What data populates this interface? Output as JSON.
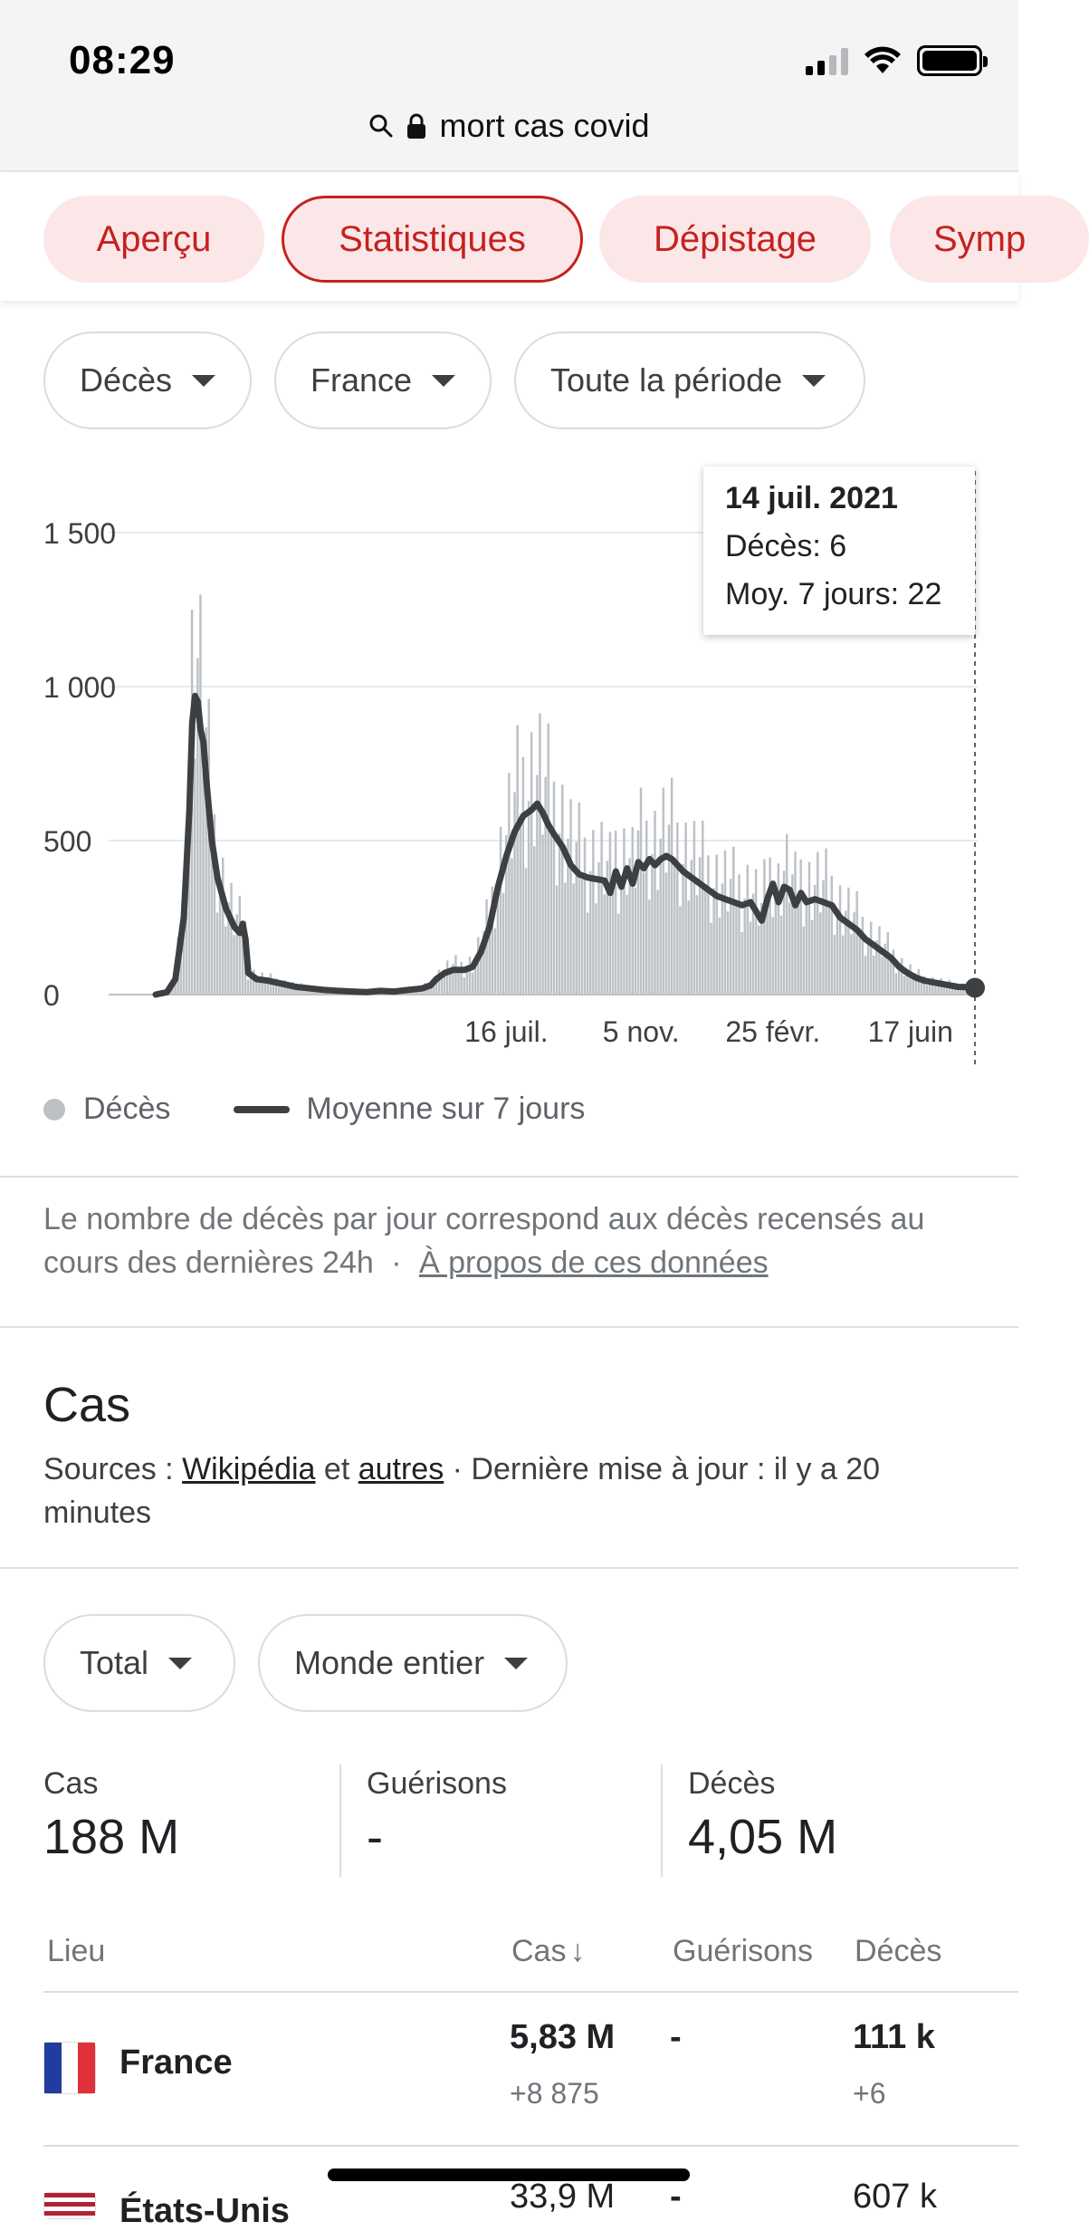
{
  "status_bar": {
    "time": "08:29"
  },
  "browser": {
    "url_text": "mort cas covid"
  },
  "tabs": [
    {
      "label": "Aperçu",
      "active": false
    },
    {
      "label": "Statistiques",
      "active": true
    },
    {
      "label": "Dépistage",
      "active": false
    },
    {
      "label": "Symp",
      "active": false
    }
  ],
  "filters": {
    "metric": "Décès",
    "region": "France",
    "period": "Toute la période"
  },
  "tooltip": {
    "date": "14 juil. 2021",
    "deaths": "Décès: 6",
    "avg": "Moy. 7 jours: 22"
  },
  "legend": {
    "bars": "Décès",
    "line": "Moyenne sur 7 jours"
  },
  "chart_data": {
    "type": "bar",
    "y_ticks": [
      "1 500",
      "1 000",
      "500",
      "0"
    ],
    "x_ticks": [
      "16 juil.",
      "5 nov.",
      "25 févr.",
      "17 juin"
    ],
    "ylim": [
      0,
      1500
    ],
    "grid": true,
    "series": [
      {
        "name": "Décès",
        "type": "bar",
        "color": "#bdc1c6"
      },
      {
        "name": "Moyenne sur 7 jours",
        "type": "line",
        "color": "#3c4043"
      }
    ],
    "avg_points": [
      [
        0,
        0
      ],
      [
        4,
        8
      ],
      [
        7,
        50
      ],
      [
        10,
        250
      ],
      [
        12,
        600
      ],
      [
        13,
        880
      ],
      [
        14,
        970
      ],
      [
        15,
        950
      ],
      [
        16,
        860
      ],
      [
        17,
        820
      ],
      [
        18,
        700
      ],
      [
        20,
        500
      ],
      [
        22,
        380
      ],
      [
        25,
        280
      ],
      [
        28,
        220
      ],
      [
        30,
        200
      ],
      [
        31,
        230
      ],
      [
        32,
        180
      ],
      [
        33,
        70
      ],
      [
        36,
        50
      ],
      [
        40,
        45
      ],
      [
        45,
        35
      ],
      [
        50,
        25
      ],
      [
        55,
        20
      ],
      [
        60,
        15
      ],
      [
        65,
        12
      ],
      [
        70,
        10
      ],
      [
        75,
        8
      ],
      [
        80,
        12
      ],
      [
        85,
        10
      ],
      [
        90,
        15
      ],
      [
        95,
        20
      ],
      [
        98,
        30
      ],
      [
        100,
        50
      ],
      [
        103,
        70
      ],
      [
        106,
        80
      ],
      [
        110,
        80
      ],
      [
        113,
        90
      ],
      [
        116,
        140
      ],
      [
        119,
        220
      ],
      [
        122,
        350
      ],
      [
        125,
        450
      ],
      [
        128,
        530
      ],
      [
        131,
        580
      ],
      [
        134,
        600
      ],
      [
        136,
        620
      ],
      [
        138,
        590
      ],
      [
        140,
        550
      ],
      [
        142,
        520
      ],
      [
        145,
        480
      ],
      [
        148,
        420
      ],
      [
        151,
        390
      ],
      [
        154,
        380
      ],
      [
        157,
        375
      ],
      [
        160,
        370
      ],
      [
        162,
        330
      ],
      [
        164,
        400
      ],
      [
        166,
        350
      ],
      [
        168,
        410
      ],
      [
        170,
        360
      ],
      [
        172,
        430
      ],
      [
        174,
        410
      ],
      [
        176,
        440
      ],
      [
        178,
        420
      ],
      [
        180,
        440
      ],
      [
        182,
        450
      ],
      [
        184,
        440
      ],
      [
        186,
        420
      ],
      [
        188,
        400
      ],
      [
        191,
        380
      ],
      [
        194,
        360
      ],
      [
        197,
        340
      ],
      [
        200,
        320
      ],
      [
        203,
        310
      ],
      [
        206,
        300
      ],
      [
        209,
        290
      ],
      [
        212,
        300
      ],
      [
        214,
        270
      ],
      [
        216,
        240
      ],
      [
        218,
        310
      ],
      [
        220,
        360
      ],
      [
        222,
        300
      ],
      [
        224,
        350
      ],
      [
        226,
        340
      ],
      [
        228,
        290
      ],
      [
        230,
        330
      ],
      [
        232,
        300
      ],
      [
        235,
        310
      ],
      [
        238,
        300
      ],
      [
        241,
        290
      ],
      [
        244,
        250
      ],
      [
        247,
        230
      ],
      [
        250,
        210
      ],
      [
        253,
        180
      ],
      [
        256,
        160
      ],
      [
        259,
        140
      ],
      [
        262,
        120
      ],
      [
        265,
        90
      ],
      [
        268,
        70
      ],
      [
        271,
        55
      ],
      [
        274,
        45
      ],
      [
        277,
        40
      ],
      [
        280,
        35
      ],
      [
        283,
        30
      ],
      [
        286,
        25
      ],
      [
        289,
        24
      ],
      [
        292,
        22
      ]
    ],
    "selected_point": {
      "index": 292,
      "value": 22
    }
  },
  "footnote": {
    "text": "Le nombre de décès par jour correspond aux décès recensés au cours des dernières 24h",
    "separator": "·",
    "link": "À propos de ces données"
  },
  "cases": {
    "title": "Cas",
    "sources_prefix": "Sources : ",
    "source1": "Wikipédia",
    "and": " et ",
    "source2": "autres",
    "updated": " · Dernière mise à jour : il y a 20 minutes",
    "filters": {
      "type": "Total",
      "scope": "Monde entier"
    },
    "stats": [
      {
        "label": "Cas",
        "value": "188 M"
      },
      {
        "label": "Guérisons",
        "value": "-"
      },
      {
        "label": "Décès",
        "value": "4,05 M"
      }
    ],
    "table": {
      "headers": [
        "Lieu",
        "Cas",
        "Guérisons",
        "Décès"
      ],
      "sort_arrow": "↓",
      "rows": [
        {
          "place": "France",
          "cases": "5,83 M",
          "cases_delta": "+8 875",
          "recovered": "-",
          "deaths": "111 k",
          "deaths_delta": "+6"
        },
        {
          "place": "États-Unis",
          "cases": "33,9 M",
          "recovered": "-",
          "deaths": "607 k"
        }
      ]
    }
  }
}
